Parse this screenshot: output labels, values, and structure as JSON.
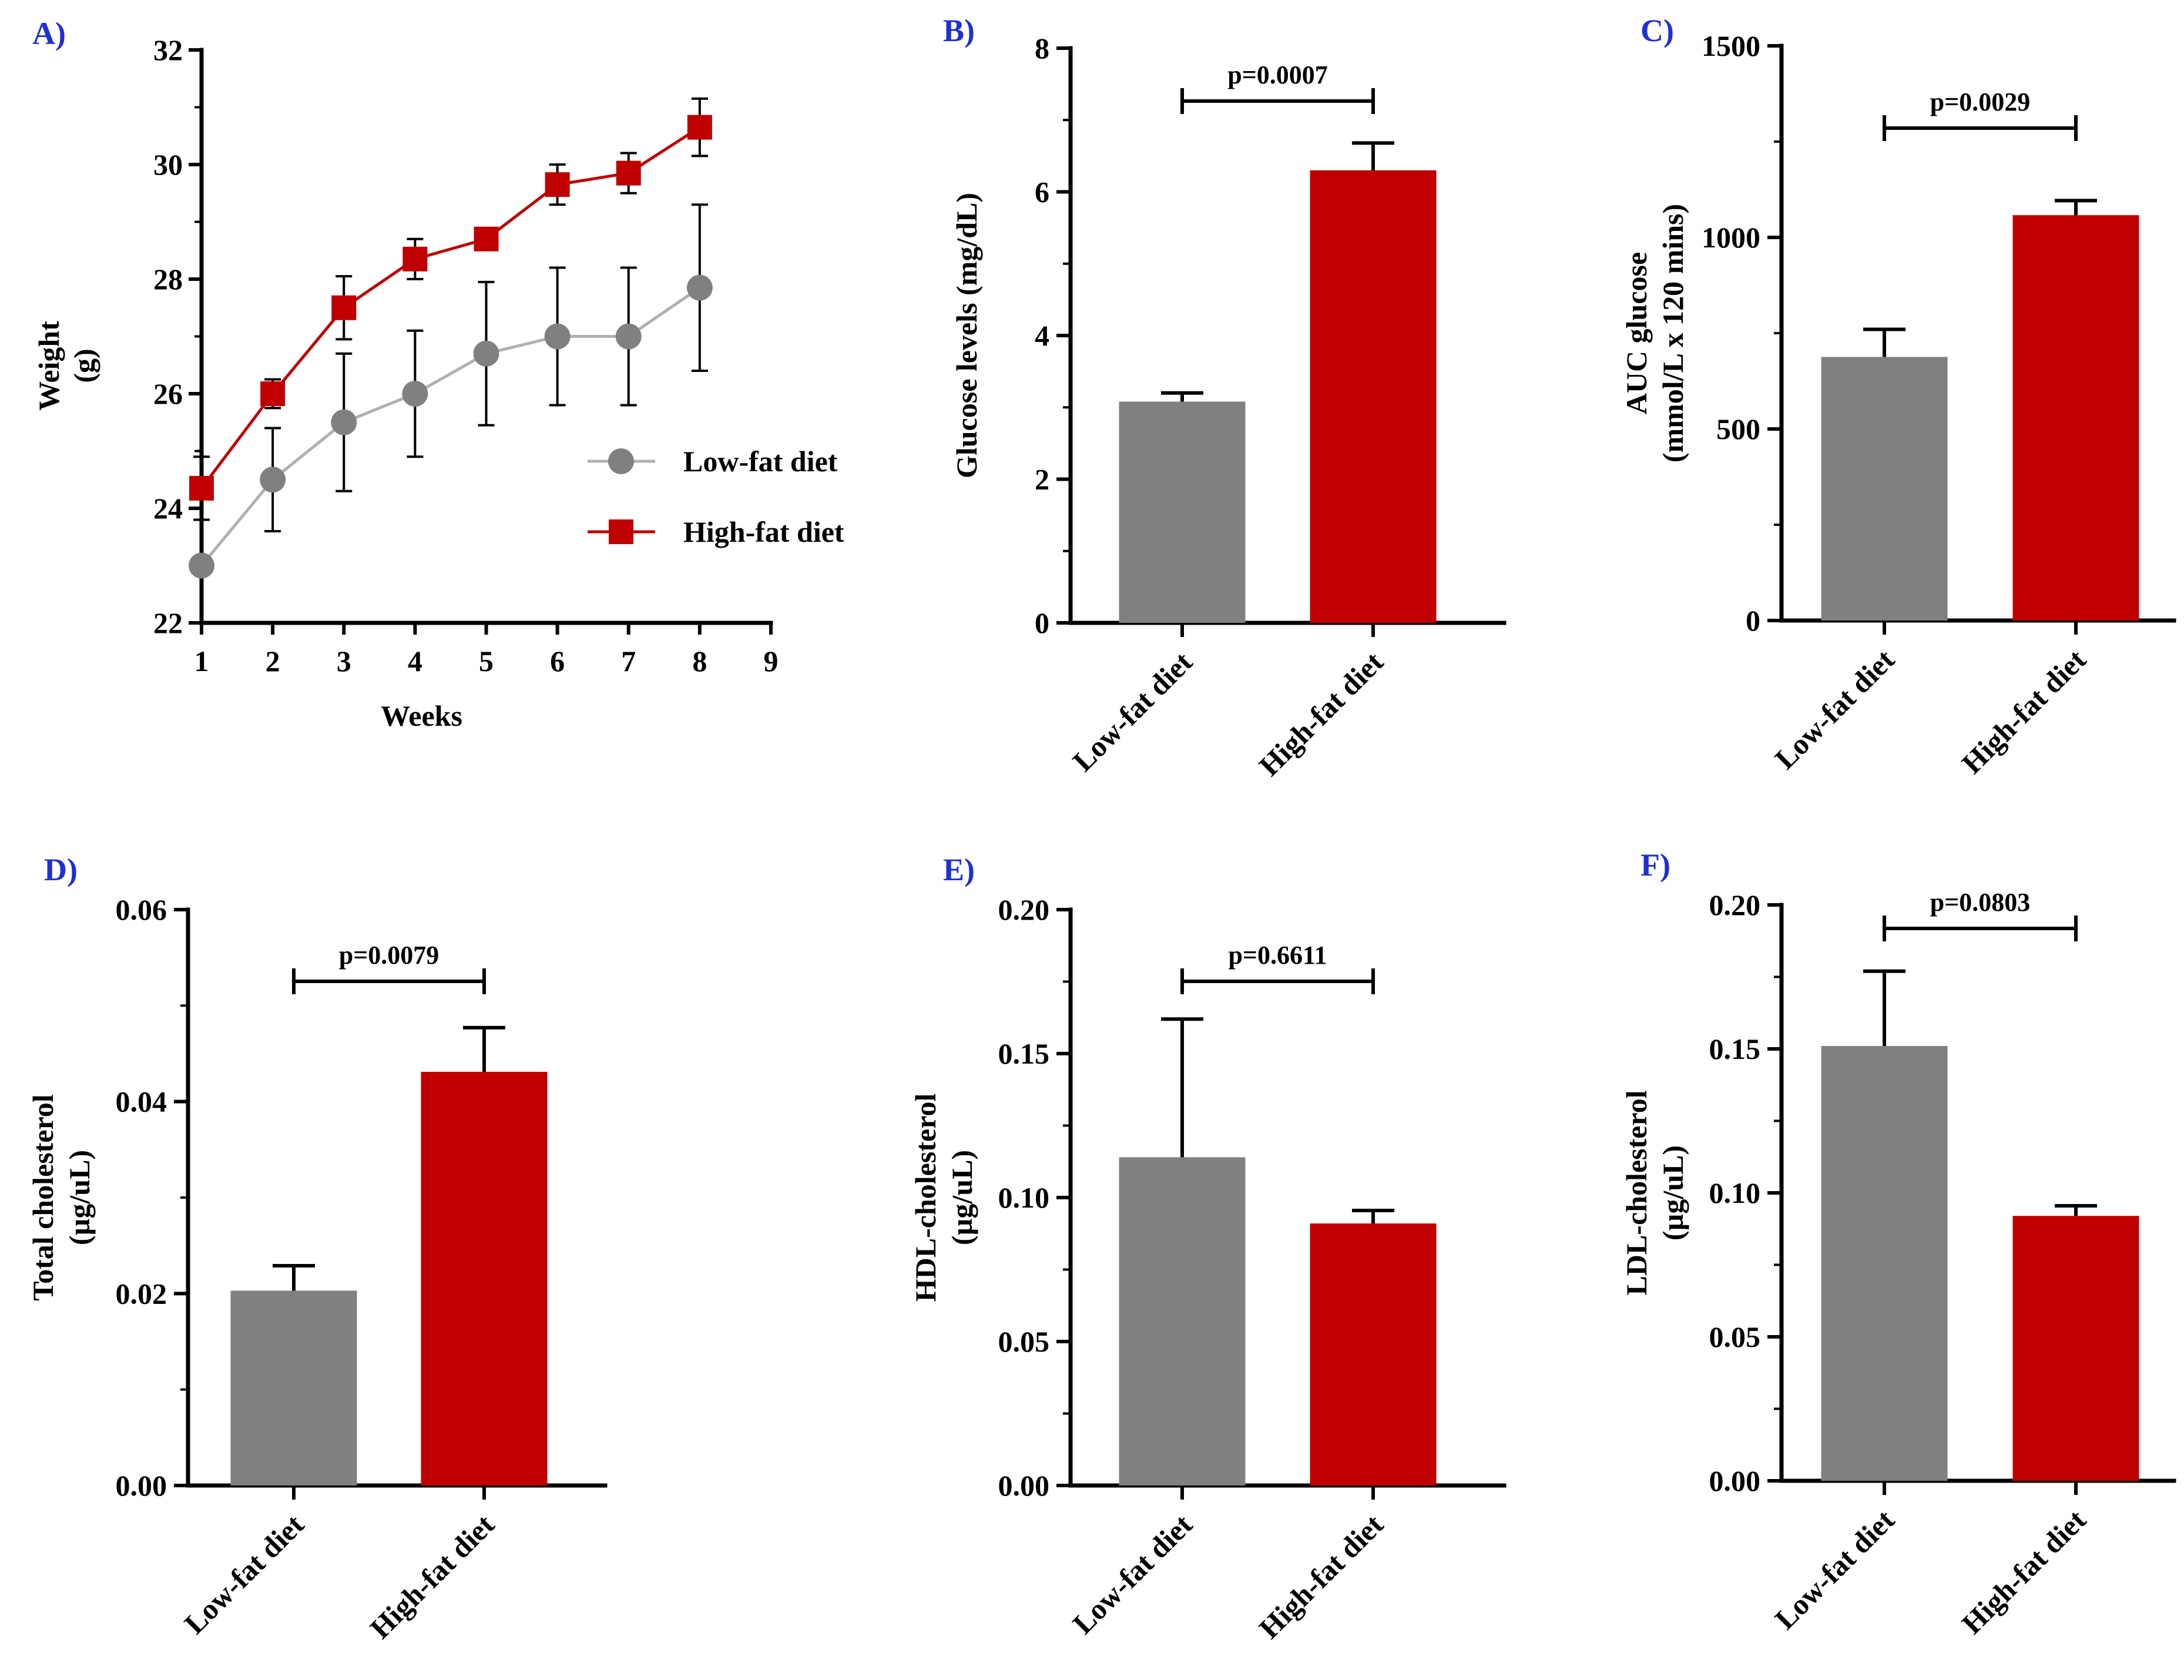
{
  "colors": {
    "low_fat": "#808080",
    "high_fat": "#c00000",
    "panel_label": "#1f2fd6",
    "axis": "#000000"
  },
  "chart_data": [
    {
      "id": "A",
      "type": "line",
      "panel_label": "A)",
      "xlabel": "Weeks",
      "ylabel": [
        "Weight",
        "(g)"
      ],
      "xlim": [
        1,
        9
      ],
      "ylim": [
        22,
        32
      ],
      "xticks": [
        "1",
        "2",
        "3",
        "4",
        "5",
        "6",
        "7",
        "8",
        "9"
      ],
      "yticks": [
        "22",
        "24",
        "26",
        "28",
        "30",
        "32"
      ],
      "legend_position": "right-middle",
      "series": [
        {
          "name": "Low-fat diet",
          "marker": "circle",
          "x": [
            1,
            2,
            3,
            4,
            5,
            6,
            7,
            8
          ],
          "y": [
            23.0,
            24.5,
            25.5,
            26.0,
            26.7,
            27.0,
            27.0,
            27.85
          ],
          "err": [
            0,
            0.9,
            1.2,
            1.1,
            1.25,
            1.2,
            1.2,
            1.45
          ]
        },
        {
          "name": "High-fat diet",
          "marker": "square",
          "x": [
            1,
            2,
            3,
            4,
            5,
            6,
            7,
            8
          ],
          "y": [
            24.35,
            26.0,
            27.5,
            28.35,
            28.7,
            29.65,
            29.85,
            30.65
          ],
          "err": [
            0.55,
            0.25,
            0.55,
            0.35,
            0.1,
            0.35,
            0.35,
            0.5
          ]
        }
      ]
    },
    {
      "id": "B",
      "type": "bar",
      "panel_label": "B)",
      "ylabel": [
        "Glucose levels (mg/dL)"
      ],
      "ylim": [
        0,
        8
      ],
      "yticks": [
        "0",
        "2",
        "4",
        "6",
        "8"
      ],
      "categories": [
        "Low-fat diet",
        "High-fat diet"
      ],
      "values": [
        3.08,
        6.3
      ],
      "errors": [
        0.12,
        0.38
      ],
      "pvalue": "p=0.0007"
    },
    {
      "id": "C",
      "type": "bar",
      "panel_label": "C)",
      "ylabel": [
        "AUC glucose",
        "(mmol/L x 120 mins)"
      ],
      "ylim": [
        0,
        1500
      ],
      "yticks": [
        "0",
        "500",
        "1000",
        "1500"
      ],
      "categories": [
        "Low-fat diet",
        "High-fat diet"
      ],
      "values": [
        688,
        1058
      ],
      "errors": [
        72,
        38
      ],
      "pvalue": "p=0.0029"
    },
    {
      "id": "D",
      "type": "bar",
      "panel_label": "D)",
      "ylabel": [
        "Total cholesterol",
        "(µg/uL)"
      ],
      "ylim": [
        0,
        0.06
      ],
      "yticks": [
        "0.00",
        "0.02",
        "0.04",
        "0.06"
      ],
      "categories": [
        "Low-fat diet",
        "High-fat diet"
      ],
      "values": [
        0.0203,
        0.0431
      ],
      "errors": [
        0.0026,
        0.0046
      ],
      "pvalue": "p=0.0079"
    },
    {
      "id": "E",
      "type": "bar",
      "panel_label": "E)",
      "ylabel": [
        "HDL-cholesterol",
        "(µg/uL)"
      ],
      "ylim": [
        0,
        0.2
      ],
      "yticks": [
        "0.00",
        "0.05",
        "0.10",
        "0.15",
        "0.20"
      ],
      "categories": [
        "Low-fat diet",
        "High-fat diet"
      ],
      "values": [
        0.114,
        0.091
      ],
      "errors": [
        0.048,
        0.0045
      ],
      "pvalue": "p=0.6611"
    },
    {
      "id": "F",
      "type": "bar",
      "panel_label": "F)",
      "ylabel": [
        "LDL-cholesterol",
        "(µg/uL)"
      ],
      "ylim": [
        0,
        0.2
      ],
      "yticks": [
        "0.00",
        "0.05",
        "0.10",
        "0.15",
        "0.20"
      ],
      "categories": [
        "Low-fat diet",
        "High-fat diet"
      ],
      "values": [
        0.151,
        0.092
      ],
      "errors": [
        0.026,
        0.0035
      ],
      "pvalue": "p=0.0803"
    }
  ]
}
